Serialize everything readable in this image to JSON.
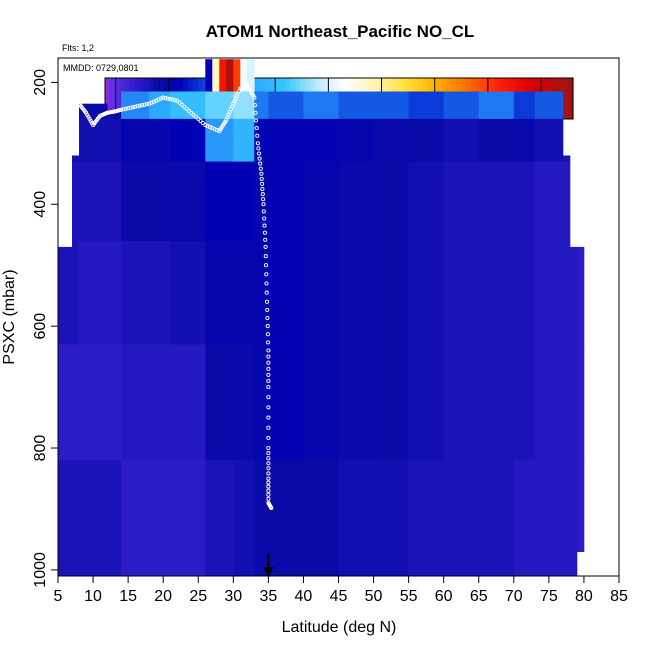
{
  "chart_data": {
    "type": "heatmap",
    "title": "ATOM1 Northeast_Pacific NO_CL",
    "subtitle_flights": "Flts: 1,2",
    "date_label": "MMDD: 0729,0801",
    "xlabel": "Latitude (deg N)",
    "ylabel": "PSXC (mbar)",
    "xlim": [
      5,
      85
    ],
    "ylim": [
      1010,
      160
    ],
    "y_reversed": true,
    "x_ticks": [
      "5",
      "10",
      "15",
      "20",
      "25",
      "30",
      "35",
      "40",
      "45",
      "50",
      "55",
      "60",
      "65",
      "70",
      "75",
      "80",
      "85"
    ],
    "y_ticks": [
      "200",
      "400",
      "600",
      "800",
      "1000"
    ],
    "colorbar": {
      "range": [
        -0.01,
        0.43
      ],
      "ticks": [
        "0.00",
        "0.05",
        "0.10",
        "0.15",
        "0.20",
        "0.25",
        "0.30",
        "0.35",
        "0.40"
      ],
      "stops": [
        {
          "v": -0.01,
          "color": "#8a2be2"
        },
        {
          "v": 0.0,
          "color": "#5b2de0"
        },
        {
          "v": 0.02,
          "color": "#2c1cc8"
        },
        {
          "v": 0.04,
          "color": "#0a0aa8"
        },
        {
          "v": 0.06,
          "color": "#0000b4"
        },
        {
          "v": 0.08,
          "color": "#0a3ad8"
        },
        {
          "v": 0.1,
          "color": "#1e78f0"
        },
        {
          "v": 0.13,
          "color": "#2ea8ff"
        },
        {
          "v": 0.16,
          "color": "#37c8ff"
        },
        {
          "v": 0.19,
          "color": "#bfeaff"
        },
        {
          "v": 0.215,
          "color": "#ffffff"
        },
        {
          "v": 0.245,
          "color": "#fff3b0"
        },
        {
          "v": 0.27,
          "color": "#ffe440"
        },
        {
          "v": 0.3,
          "color": "#ffb000"
        },
        {
          "v": 0.33,
          "color": "#ff7000"
        },
        {
          "v": 0.36,
          "color": "#ff2000"
        },
        {
          "v": 0.39,
          "color": "#dd0000"
        },
        {
          "v": 0.43,
          "color": "#9b1414"
        }
      ]
    },
    "marker_latitude": 35,
    "columns": [
      {
        "x0": 5,
        "x1": 7,
        "p_top": 470,
        "vals": [
          0.03,
          0.03,
          0.03,
          0.03,
          0.02,
          0.03
        ]
      },
      {
        "x0": 7,
        "x1": 8,
        "p_top": 320,
        "vals": [
          0.035,
          0.035,
          0.03,
          0.03,
          0.02,
          0.03
        ]
      },
      {
        "x0": 8,
        "x1": 12,
        "p_top": 235,
        "vals": [
          0.04,
          0.035,
          0.03,
          0.025,
          0.02,
          0.03
        ]
      },
      {
        "x0": 12,
        "x1": 14,
        "p_top": 245,
        "vals": [
          0.04,
          0.035,
          0.03,
          0.025,
          0.02,
          0.03
        ]
      },
      {
        "x0": 14,
        "x1": 18,
        "p_top": 215,
        "vals": [
          0.11,
          0.05,
          0.04,
          0.03,
          0.025,
          0.02
        ]
      },
      {
        "x0": 18,
        "x1": 21,
        "p_top": 215,
        "vals": [
          0.13,
          0.05,
          0.04,
          0.03,
          0.025,
          0.02
        ]
      },
      {
        "x0": 21,
        "x1": 26,
        "p_top": 215,
        "vals": [
          0.15,
          0.06,
          0.045,
          0.035,
          0.025,
          0.02
        ]
      },
      {
        "x0": 26,
        "x1": 30,
        "p_top": 215,
        "vals": [
          0.17,
          0.12,
          0.06,
          0.05,
          0.04,
          0.03
        ]
      },
      {
        "x0": 30,
        "x1": 33,
        "p_top": 215,
        "vals": [
          0.18,
          0.14,
          0.06,
          0.05,
          0.045,
          0.035
        ]
      },
      {
        "x0": 33,
        "x1": 35,
        "p_top": 215,
        "vals": [
          0.1,
          0.06,
          0.05,
          0.05,
          0.05,
          0.04
        ]
      },
      {
        "x0": 35,
        "x1": 40,
        "p_top": 215,
        "vals": [
          0.09,
          0.055,
          0.055,
          0.055,
          0.055,
          0.04
        ]
      },
      {
        "x0": 40,
        "x1": 45,
        "p_top": 215,
        "vals": [
          0.1,
          0.055,
          0.05,
          0.05,
          0.05,
          0.04
        ]
      },
      {
        "x0": 45,
        "x1": 50,
        "p_top": 215,
        "vals": [
          0.09,
          0.05,
          0.045,
          0.045,
          0.045,
          0.035
        ]
      },
      {
        "x0": 50,
        "x1": 55,
        "p_top": 215,
        "vals": [
          0.09,
          0.045,
          0.04,
          0.04,
          0.04,
          0.035
        ]
      },
      {
        "x0": 55,
        "x1": 60,
        "p_top": 215,
        "vals": [
          0.08,
          0.04,
          0.035,
          0.035,
          0.035,
          0.03
        ]
      },
      {
        "x0": 60,
        "x1": 65,
        "p_top": 215,
        "vals": [
          0.09,
          0.035,
          0.03,
          0.03,
          0.03,
          0.03
        ]
      },
      {
        "x0": 65,
        "x1": 70,
        "p_top": 215,
        "vals": [
          0.1,
          0.04,
          0.03,
          0.03,
          0.03,
          0.03
        ]
      },
      {
        "x0": 70,
        "x1": 73,
        "p_top": 215,
        "vals": [
          0.08,
          0.045,
          0.03,
          0.03,
          0.03,
          0.025
        ]
      },
      {
        "x0": 73,
        "x1": 77,
        "p_top": 215,
        "vals": [
          0.09,
          0.035,
          0.025,
          0.025,
          0.025,
          0.025
        ]
      },
      {
        "x0": 77,
        "x1": 78,
        "p_top": 320,
        "vals": [
          0.03,
          0.03,
          0.025,
          0.025,
          0.025,
          0.025
        ]
      },
      {
        "x0": 78,
        "x1": 79,
        "p_top": 470,
        "vals": [
          0.025,
          0.025,
          0.025,
          0.025,
          0.025,
          0.025
        ]
      },
      {
        "x0": 79,
        "x1": 80,
        "p_top": 470,
        "p_bottom": 970,
        "vals": [
          0.02,
          0.02,
          0.02,
          0.02,
          0.02,
          0.02
        ]
      }
    ],
    "hot_cells": [
      {
        "x0": 26,
        "x1": 27,
        "p0": 162,
        "p1": 215,
        "v": 0.06
      },
      {
        "x0": 27,
        "x1": 28,
        "p0": 162,
        "p1": 215,
        "v": 0.24
      },
      {
        "x0": 28,
        "x1": 29,
        "p0": 162,
        "p1": 215,
        "v": 0.37
      },
      {
        "x0": 29,
        "x1": 30,
        "p0": 162,
        "p1": 215,
        "v": 0.42
      },
      {
        "x0": 30,
        "x1": 31,
        "p0": 162,
        "p1": 215,
        "v": 0.35
      },
      {
        "x0": 31,
        "x1": 32,
        "p0": 162,
        "p1": 215,
        "v": 0.21
      },
      {
        "x0": 32,
        "x1": 33,
        "p0": 162,
        "p1": 215,
        "v": 0.2
      }
    ],
    "flight_track": [
      [
        8,
        235
      ],
      [
        9,
        250
      ],
      [
        10,
        270
      ],
      [
        11,
        255
      ],
      [
        12,
        250
      ],
      [
        13,
        248
      ],
      [
        14,
        245
      ],
      [
        16,
        240
      ],
      [
        18,
        235
      ],
      [
        20,
        225
      ],
      [
        22,
        230
      ],
      [
        24,
        250
      ],
      [
        26,
        270
      ],
      [
        28,
        280
      ],
      [
        29,
        262
      ],
      [
        30,
        235
      ],
      [
        31,
        210
      ],
      [
        32,
        205
      ],
      [
        33,
        225
      ],
      [
        33.5,
        300
      ],
      [
        34,
        350
      ],
      [
        34.3,
        400
      ],
      [
        34.6,
        470
      ],
      [
        34.8,
        560
      ],
      [
        35,
        640
      ],
      [
        35,
        700
      ],
      [
        35,
        800
      ],
      [
        35,
        850
      ],
      [
        35,
        890
      ],
      [
        35.5,
        900
      ]
    ]
  }
}
